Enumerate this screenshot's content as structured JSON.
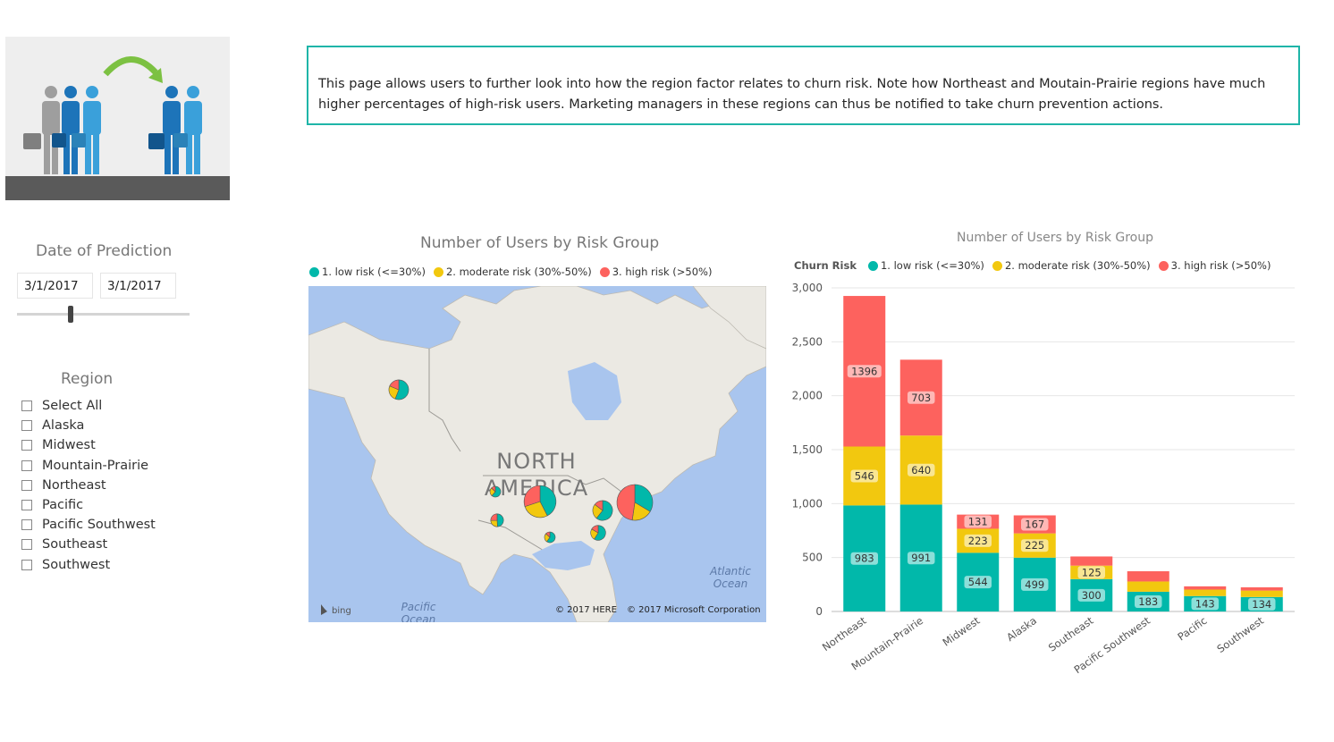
{
  "description": "This page allows users to further look into how the region factor relates to churn risk. Note how Northeast and Moutain-Prairie regions have much higher percentages of high-risk users.  Marketing managers in these regions can thus be notified to take churn prevention actions.",
  "date_slicer": {
    "title": "Date of Prediction",
    "start": "3/1/2017",
    "end": "3/1/2017",
    "slider_position": 0.31
  },
  "region_slicer": {
    "title": "Region",
    "items": [
      "Select All",
      "Alaska",
      "Midwest",
      "Mountain-Prairie",
      "Northeast",
      "Pacific",
      "Pacific Southwest",
      "Southeast",
      "Southwest"
    ]
  },
  "legend_items": [
    {
      "label": "1. low risk (<=30%)",
      "color": "#01b8aa"
    },
    {
      "label": "2. moderate risk (30%-50%)",
      "color": "#f2c80f"
    },
    {
      "label": "3. high risk (>50%)",
      "color": "#fd625e"
    }
  ],
  "map": {
    "title": "Number of Users by Risk Group",
    "continent_label": "NORTH AMERICA",
    "ocean_atlantic": "Atlantic Ocean",
    "ocean_pacific": "Pacific Ocean",
    "provider": "bing",
    "copyright_here": "© 2017 HERE",
    "copyright_ms": "© 2017 Microsoft Corporation"
  },
  "bar_chart": {
    "title": "Number of Users by Risk Group",
    "legend_title": "Churn Risk"
  },
  "chart_data": {
    "type": "bar",
    "stacked": true,
    "title": "Number of Users by Risk Group",
    "categories": [
      "Northeast",
      "Mountain-Prairie",
      "Midwest",
      "Alaska",
      "Southeast",
      "Pacific Southwest",
      "Pacific",
      "Southwest"
    ],
    "series": [
      {
        "name": "1. low risk (<=30%)",
        "color": "#01b8aa",
        "values": [
          983,
          991,
          544,
          499,
          300,
          183,
          143,
          134
        ]
      },
      {
        "name": "2. moderate risk (30%-50%)",
        "color": "#f2c80f",
        "values": [
          546,
          640,
          223,
          225,
          125,
          95,
          60,
          60
        ]
      },
      {
        "name": "3. high risk (>50%)",
        "color": "#fd625e",
        "values": [
          1396,
          703,
          131,
          167,
          85,
          95,
          30,
          30
        ]
      }
    ],
    "data_labels": [
      [
        "983",
        "991",
        "544",
        "499",
        "300",
        "183",
        "143",
        "134"
      ],
      [
        "546",
        "640",
        "223",
        "225",
        "125",
        "",
        "",
        ""
      ],
      [
        "1396",
        "703",
        "131",
        "167",
        "",
        "",
        "",
        ""
      ]
    ],
    "y_ticks": [
      "0",
      "500",
      "1,000",
      "1,500",
      "2,000",
      "2,500",
      "3,000"
    ],
    "ylim": [
      0,
      3000
    ],
    "grid": true,
    "legend_position": "top-left"
  }
}
